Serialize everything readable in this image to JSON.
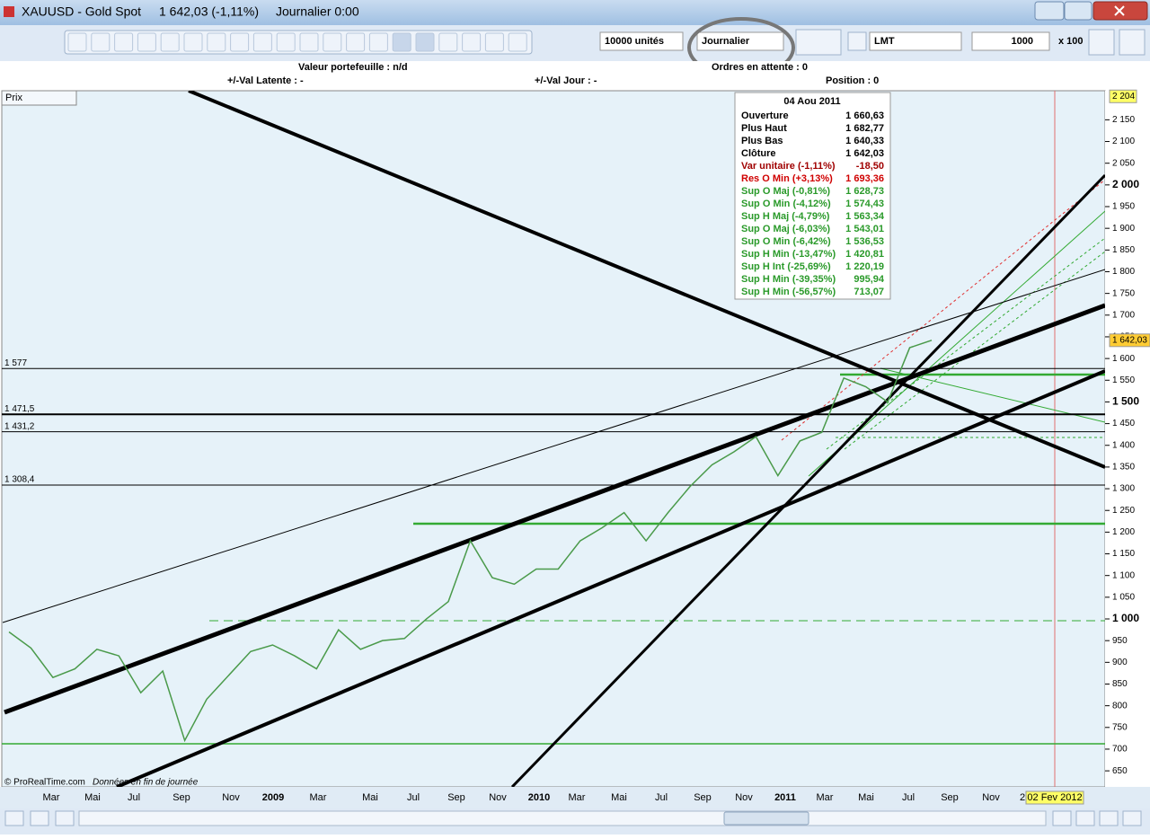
{
  "window": {
    "title": "XAUUSD - Gold Spot",
    "price": "1 642,03 (-1,11%)",
    "period": "Journalier  0:00"
  },
  "toolbar": {
    "units": "10000 unités",
    "period": "Journalier",
    "order_type": "LMT",
    "quantity": "1000",
    "multiplier": "x 100"
  },
  "status": {
    "portfolio": "Valeur portefeuille : n/d",
    "pending": "Ordres en attente : 0",
    "latent": "+/-Val Latente : -",
    "day": "+/-Val Jour : -",
    "position": "Position : 0"
  },
  "chart_data": {
    "type": "line",
    "panel_label": "Prix",
    "source": "© ProRealTime.com",
    "note": "Données en fin de journée",
    "date_labels": [
      "Mar",
      "Mai",
      "Jul",
      "Sep",
      "Nov",
      "2009",
      "Mar",
      "Mai",
      "Jul",
      "Sep",
      "Nov",
      "2010",
      "Mar",
      "Mai",
      "Jul",
      "Sep",
      "Nov",
      "2011",
      "Mar",
      "Mai",
      "Jul",
      "Sep",
      "Nov",
      "2",
      "02 Fev 2012"
    ],
    "ylim": [
      613,
      2217
    ],
    "yticks": [
      650,
      700,
      750,
      800,
      850,
      900,
      950,
      {
        "value": 1000,
        "label": "1 000"
      },
      {
        "value": 1050,
        "label": "1 050"
      },
      {
        "value": 1100,
        "label": "1 100"
      },
      {
        "value": 1150,
        "label": "1 150"
      },
      {
        "value": 1200,
        "label": "1 200"
      },
      {
        "value": 1250,
        "label": "1 250"
      },
      {
        "value": 1300,
        "label": "1 300"
      },
      {
        "value": 1350,
        "label": "1 350"
      },
      {
        "value": 1400,
        "label": "1 400"
      },
      {
        "value": 1450,
        "label": "1 450"
      },
      {
        "value": 1500,
        "label": "1 500"
      },
      {
        "value": 1550,
        "label": "1 550"
      },
      {
        "value": 1600,
        "label": "1 600"
      },
      {
        "value": 1650,
        "label": "1 650"
      },
      {
        "value": 1700,
        "label": "1 700"
      },
      {
        "value": 1750,
        "label": "1 750"
      },
      {
        "value": 1800,
        "label": "1 800"
      },
      {
        "value": 1850,
        "label": "1 850"
      },
      {
        "value": 1900,
        "label": "1 900"
      },
      {
        "value": 1950,
        "label": "1 950"
      },
      {
        "value": 2000,
        "label": "2 000"
      },
      {
        "value": 2050,
        "label": "2 050"
      },
      {
        "value": 2100,
        "label": "2 100"
      },
      {
        "value": 2150,
        "label": "2 150"
      }
    ],
    "top_marker": {
      "value": 2204,
      "label": "2 204"
    },
    "last_price": {
      "value": 1642.03,
      "label": "1 642,03"
    },
    "levels": [
      {
        "value": 1577,
        "label": "1 577"
      },
      {
        "value": 1471.5,
        "label": "1 471,5"
      },
      {
        "value": 1431.2,
        "label": "1 431,2"
      },
      {
        "value": 1308.4,
        "label": "1 308,4"
      }
    ],
    "series": [
      {
        "color": "#4a9a4a",
        "values": [
          970,
          933,
          865,
          885,
          930,
          915,
          830,
          880,
          720,
          815,
          870,
          925,
          940,
          915,
          885,
          975,
          930,
          950,
          955,
          1000,
          1040,
          1180,
          1095,
          1080,
          1115,
          1115,
          1180,
          1210,
          1245,
          1180,
          1245,
          1305,
          1355,
          1385,
          1420,
          1330,
          1410,
          1430,
          1555,
          1535,
          1500,
          1625,
          1642.03
        ]
      }
    ],
    "info_box": {
      "date": "04 Aou 2011",
      "rows": [
        {
          "label": "Ouverture",
          "value": "1 660,63",
          "color": "#000000"
        },
        {
          "label": "Plus Haut",
          "value": "1 682,77",
          "color": "#000000"
        },
        {
          "label": "Plus Bas",
          "value": "1 640,33",
          "color": "#000000"
        },
        {
          "label": "Clôture",
          "value": "1 642,03",
          "color": "#000000"
        },
        {
          "label": "Var unitaire (-1,11%)",
          "value": "-18,50",
          "color": "#a00000"
        },
        {
          "label": "Res O Min (+3,13%)",
          "value": "1 693,36",
          "color": "#d00000"
        },
        {
          "label": "Sup O Maj (-0,81%)",
          "value": "1 628,73",
          "color": "#2a9a2a"
        },
        {
          "label": "Sup O Min (-4,12%)",
          "value": "1 574,43",
          "color": "#2a9a2a"
        },
        {
          "label": "Sup H Maj (-4,79%)",
          "value": "1 563,34",
          "color": "#2a9a2a"
        },
        {
          "label": "Sup O Maj (-6,03%)",
          "value": "1 543,01",
          "color": "#2a9a2a"
        },
        {
          "label": "Sup O Min (-6,42%)",
          "value": "1 536,53",
          "color": "#2a9a2a"
        },
        {
          "label": "Sup H Min (-13,47%)",
          "value": "1 420,81",
          "color": "#2a9a2a"
        },
        {
          "label": "Sup H Int (-25,69%)",
          "value": "1 220,19",
          "color": "#2a9a2a"
        },
        {
          "label": "Sup H Min (-39,35%)",
          "value": "995,94",
          "color": "#2a9a2a"
        },
        {
          "label": "Sup H Min (-56,57%)",
          "value": "713,07",
          "color": "#2a9a2a"
        }
      ]
    }
  }
}
